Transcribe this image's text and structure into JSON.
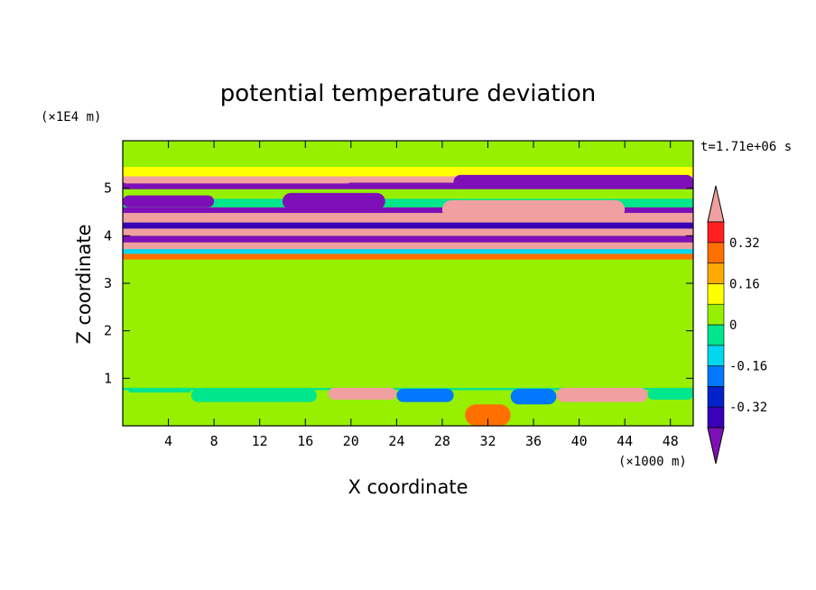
{
  "chart_data": {
    "type": "heatmap",
    "title": "potential temperature deviation",
    "xlabel": "X coordinate",
    "ylabel": "Z coordinate",
    "x_unit": "(×1000 m)",
    "y_unit": "(×1E4 m)",
    "time_label": "t=1.71e+06 s",
    "xlim": [
      0,
      50
    ],
    "ylim": [
      0,
      6
    ],
    "x_ticks": [
      4,
      8,
      12,
      16,
      20,
      24,
      28,
      32,
      36,
      40,
      44,
      48
    ],
    "y_ticks": [
      1,
      2,
      3,
      4,
      5
    ],
    "colorbar": {
      "levels": [
        -0.4,
        -0.32,
        -0.24,
        -0.16,
        -0.08,
        0,
        0.08,
        0.16,
        0.24,
        0.32,
        0.4
      ],
      "colors": [
        "#7e0fb8",
        "#3a00b8",
        "#0022c8",
        "#0078ff",
        "#00d8f0",
        "#00e68c",
        "#96f000",
        "#ffff00",
        "#ffaa00",
        "#ff7000",
        "#ff2020",
        "#f0a0a0"
      ],
      "labels": [
        "0.32",
        "0.16",
        "0",
        "-0.16",
        "-0.32"
      ],
      "label_values": [
        0.32,
        0.16,
        0,
        -0.16,
        -0.32
      ]
    },
    "bands": [
      {
        "y0": 0.0,
        "y1": 0.35,
        "value": 0.04
      },
      {
        "y0": 0.35,
        "y1": 0.75,
        "value": 0.0
      },
      {
        "y0": 0.75,
        "y1": 0.8,
        "value": -0.05
      },
      {
        "y0": 0.8,
        "y1": 1.4,
        "value": 0.06
      },
      {
        "y0": 1.4,
        "y1": 3.5,
        "value": 0.02
      },
      {
        "y0": 3.5,
        "y1": 3.62,
        "value": 0.3
      },
      {
        "y0": 3.62,
        "y1": 3.72,
        "value": -0.12
      },
      {
        "y0": 3.72,
        "y1": 3.86,
        "value": 0.42
      },
      {
        "y0": 3.86,
        "y1": 4.0,
        "value": -0.42
      },
      {
        "y0": 4.0,
        "y1": 4.15,
        "value": 0.42
      },
      {
        "y0": 4.15,
        "y1": 4.28,
        "value": -0.35
      },
      {
        "y0": 4.28,
        "y1": 4.48,
        "value": 0.42
      },
      {
        "y0": 4.48,
        "y1": 4.6,
        "value": -0.42
      },
      {
        "y0": 4.6,
        "y1": 4.78,
        "value": -0.08
      },
      {
        "y0": 4.78,
        "y1": 4.98,
        "value": 0.04
      },
      {
        "y0": 4.98,
        "y1": 5.12,
        "value": -0.42
      },
      {
        "y0": 5.12,
        "y1": 5.25,
        "value": 0.42
      },
      {
        "y0": 5.25,
        "y1": 5.45,
        "value": 0.08
      },
      {
        "y0": 5.45,
        "y1": 6.0,
        "value": 0.02
      }
    ],
    "features": [
      {
        "x0": 0.5,
        "x1": 6,
        "y0": 0.7,
        "y1": 0.8,
        "value": -0.08
      },
      {
        "x0": 6,
        "x1": 17,
        "y0": 0.5,
        "y1": 0.78,
        "value": -0.08
      },
      {
        "x0": 18,
        "x1": 24,
        "y0": 0.55,
        "y1": 0.8,
        "value": 0.42
      },
      {
        "x0": 24,
        "x1": 29,
        "y0": 0.5,
        "y1": 0.78,
        "value": -0.2
      },
      {
        "x0": 30,
        "x1": 34,
        "y0": 0.0,
        "y1": 0.45,
        "value": 0.3
      },
      {
        "x0": 34,
        "x1": 38,
        "y0": 0.45,
        "y1": 0.78,
        "value": -0.2
      },
      {
        "x0": 38,
        "x1": 46,
        "y0": 0.5,
        "y1": 0.8,
        "value": 0.42
      },
      {
        "x0": 46,
        "x1": 50,
        "y0": 0.55,
        "y1": 0.78,
        "value": -0.08
      },
      {
        "x0": 14,
        "x1": 23,
        "y0": 4.55,
        "y1": 4.9,
        "value": -0.42
      },
      {
        "x0": 0,
        "x1": 8,
        "y0": 4.6,
        "y1": 4.85,
        "value": -0.42
      },
      {
        "x0": 28,
        "x1": 44,
        "y0": 4.35,
        "y1": 4.75,
        "value": 0.42
      },
      {
        "x0": 29,
        "x1": 50,
        "y0": 5.0,
        "y1": 5.28,
        "value": -0.42
      },
      {
        "x0": 0,
        "x1": 20,
        "y0": 5.1,
        "y1": 5.25,
        "value": 0.42
      }
    ]
  }
}
